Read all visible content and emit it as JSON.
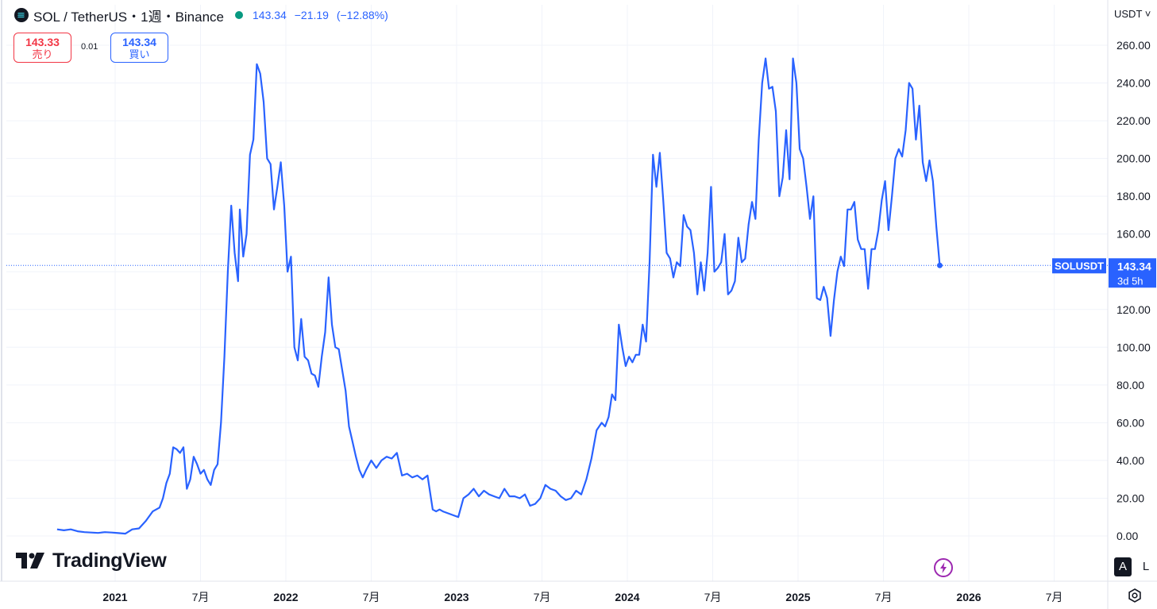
{
  "header": {
    "title": "SOL / TetherUS・1週・Binance",
    "last": "143.34",
    "change": "−21.19",
    "change_pct": "(−12.88%)",
    "color_up": "#2962ff",
    "status_color": "#089981"
  },
  "trade": {
    "sell_price": "143.33",
    "sell_label": "売り",
    "buy_price": "143.34",
    "buy_label": "買い",
    "spread": "0.01",
    "sell_color": "#f23645",
    "buy_color": "#2962ff"
  },
  "currency": {
    "label": "USDT ˅"
  },
  "logo": {
    "text": "TradingView"
  },
  "price_tag": {
    "symbol": "SOLUSDT",
    "value": "143.34",
    "countdown": "3d 5h"
  },
  "scale_buttons": {
    "auto": "A",
    "log": "L"
  },
  "chart_data": {
    "type": "line",
    "series": [
      {
        "color": "#2962ff",
        "x": [
          2020.66,
          2020.7,
          2020.74,
          2020.78,
          2020.82,
          2020.86,
          2020.9,
          2020.94,
          2020.98,
          2021.02,
          2021.06,
          2021.1,
          2021.14,
          2021.18,
          2021.22,
          2021.26,
          2021.28,
          2021.3,
          2021.32,
          2021.34,
          2021.36,
          2021.38,
          2021.4,
          2021.42,
          2021.44,
          2021.46,
          2021.48,
          2021.5,
          2021.52,
          2021.54,
          2021.56,
          2021.58,
          2021.6,
          2021.62,
          2021.64,
          2021.66,
          2021.68,
          2021.7,
          2021.72,
          2021.73,
          2021.75,
          2021.77,
          2021.79,
          2021.81,
          2021.83,
          2021.85,
          2021.87,
          2021.89,
          2021.91,
          2021.93,
          2021.95,
          2021.97,
          2021.99,
          2022.01,
          2022.03,
          2022.05,
          2022.07,
          2022.09,
          2022.11,
          2022.13,
          2022.15,
          2022.17,
          2022.19,
          2022.21,
          2022.23,
          2022.25,
          2022.27,
          2022.29,
          2022.31,
          2022.33,
          2022.35,
          2022.37,
          2022.39,
          2022.41,
          2022.43,
          2022.45,
          2022.47,
          2022.5,
          2022.53,
          2022.56,
          2022.59,
          2022.62,
          2022.65,
          2022.68,
          2022.71,
          2022.74,
          2022.77,
          2022.8,
          2022.83,
          2022.86,
          2022.88,
          2022.9,
          2022.92,
          2022.95,
          2022.98,
          2023.01,
          2023.04,
          2023.07,
          2023.1,
          2023.13,
          2023.16,
          2023.19,
          2023.22,
          2023.25,
          2023.28,
          2023.31,
          2023.34,
          2023.37,
          2023.4,
          2023.43,
          2023.46,
          2023.49,
          2023.52,
          2023.55,
          2023.58,
          2023.61,
          2023.64,
          2023.67,
          2023.7,
          2023.73,
          2023.76,
          2023.79,
          2023.82,
          2023.85,
          2023.87,
          2023.89,
          2023.91,
          2023.93,
          2023.95,
          2023.97,
          2023.99,
          2024.01,
          2024.03,
          2024.05,
          2024.07,
          2024.09,
          2024.11,
          2024.13,
          2024.15,
          2024.17,
          2024.19,
          2024.21,
          2024.23,
          2024.25,
          2024.27,
          2024.29,
          2024.31,
          2024.33,
          2024.35,
          2024.37,
          2024.39,
          2024.41,
          2024.43,
          2024.45,
          2024.47,
          2024.49,
          2024.51,
          2024.53,
          2024.55,
          2024.57,
          2024.59,
          2024.61,
          2024.63,
          2024.65,
          2024.67,
          2024.69,
          2024.71,
          2024.73,
          2024.75,
          2024.77,
          2024.79,
          2024.81,
          2024.83,
          2024.85,
          2024.87,
          2024.89,
          2024.91,
          2024.93,
          2024.95,
          2024.97,
          2024.99,
          2025.01,
          2025.03,
          2025.05,
          2025.07,
          2025.09,
          2025.11,
          2025.13,
          2025.15,
          2025.17,
          2025.19,
          2025.21,
          2025.23,
          2025.25,
          2025.27,
          2025.29,
          2025.31,
          2025.33,
          2025.35,
          2025.37,
          2025.39,
          2025.41,
          2025.43,
          2025.45,
          2025.47,
          2025.49,
          2025.51,
          2025.53,
          2025.55,
          2025.57,
          2025.59,
          2025.61,
          2025.63,
          2025.65,
          2025.67,
          2025.69,
          2025.71,
          2025.73,
          2025.75,
          2025.77,
          2025.79,
          2025.81,
          2025.83
        ],
        "y": [
          3.5,
          3.0,
          3.5,
          2.5,
          2.0,
          1.8,
          1.6,
          2.0,
          1.8,
          1.5,
          1.2,
          3.5,
          4.0,
          8.0,
          13.0,
          15.0,
          20.0,
          28.0,
          33.0,
          47.0,
          46.0,
          44.0,
          47.0,
          25.0,
          30.0,
          42.0,
          38.0,
          33.0,
          35.0,
          30.0,
          27.0,
          35.0,
          38.0,
          60.0,
          95.0,
          140.0,
          175.0,
          150.0,
          135.0,
          173.0,
          148.0,
          160.0,
          202.0,
          210.0,
          250.0,
          245.0,
          230.0,
          200.0,
          197.0,
          173.0,
          185.0,
          198.0,
          175.0,
          140.0,
          148.0,
          100.0,
          93.0,
          115.0,
          95.0,
          93.0,
          86.0,
          85.0,
          79.0,
          95.0,
          108.0,
          137.0,
          112.0,
          100.0,
          99.0,
          88.0,
          77.0,
          58.0,
          50.0,
          42.0,
          35.0,
          31.0,
          35.0,
          40.0,
          36.0,
          40.0,
          42.0,
          41.0,
          44.0,
          32.0,
          33.0,
          31.0,
          32.0,
          30.0,
          32.0,
          14.0,
          13.0,
          14.0,
          13.0,
          12.0,
          11.0,
          10.0,
          20.0,
          22.0,
          25.0,
          21.0,
          24.0,
          22.0,
          21.0,
          20.0,
          25.0,
          21.0,
          21.0,
          20.0,
          22.0,
          16.0,
          17.0,
          20.0,
          27.0,
          25.0,
          24.0,
          21.0,
          19.0,
          20.0,
          24.0,
          22.0,
          30.0,
          41.0,
          56.0,
          60.0,
          58.0,
          63.0,
          75.0,
          72.0,
          112.0,
          100.0,
          90.0,
          95.0,
          92.0,
          96.0,
          96.0,
          112.0,
          103.0,
          145.0,
          202.0,
          185.0,
          203.0,
          178.0,
          150.0,
          147.0,
          137.0,
          145.0,
          143.0,
          170.0,
          164.0,
          162.0,
          150.0,
          128.0,
          145.0,
          130.0,
          150.0,
          185.0,
          140.0,
          142.0,
          145.0,
          160.0,
          128.0,
          130.0,
          135.0,
          158.0,
          145.0,
          147.0,
          165.0,
          177.0,
          168.0,
          210.0,
          240.0,
          253.0,
          237.0,
          238.0,
          225.0,
          180.0,
          190.0,
          215.0,
          189.0,
          253.0,
          240.0,
          205.0,
          200.0,
          185.0,
          168.0,
          180.0,
          126.0,
          125.0,
          132.0,
          126.0,
          106.0,
          125.0,
          140.0,
          148.0,
          143.0,
          173.0,
          173.0,
          177.0,
          157.0,
          152.0,
          152.0,
          131.0,
          152.0,
          152.0,
          162.0,
          178.0,
          188.0,
          162.0,
          180.0,
          200.0,
          205.0,
          201.0,
          215.0,
          240.0,
          237.0,
          210.0,
          228.0,
          198.0,
          188.0,
          199.0,
          188.0,
          164.0,
          143.34
        ]
      }
    ],
    "ylim": [
      -20,
      265
    ],
    "xlim": [
      2020.58,
      2026.97
    ],
    "y_ticks": [
      "0.00",
      "20.00",
      "40.00",
      "60.00",
      "80.00",
      "100.00",
      "120.00",
      "140.00",
      "160.00",
      "180.00",
      "200.00",
      "220.00",
      "240.00",
      "260.00"
    ],
    "y_tick_values": [
      0,
      20,
      40,
      60,
      80,
      100,
      120,
      140,
      160,
      180,
      200,
      220,
      240,
      260
    ],
    "x_ticks": [
      {
        "label": "2021",
        "at": 2021.0,
        "bold": true
      },
      {
        "label": "7月",
        "at": 2021.5,
        "bold": false
      },
      {
        "label": "2022",
        "at": 2022.0,
        "bold": true
      },
      {
        "label": "7月",
        "at": 2022.5,
        "bold": false
      },
      {
        "label": "2023",
        "at": 2023.0,
        "bold": true
      },
      {
        "label": "7月",
        "at": 2023.5,
        "bold": false
      },
      {
        "label": "2024",
        "at": 2024.0,
        "bold": true
      },
      {
        "label": "7月",
        "at": 2024.5,
        "bold": false
      },
      {
        "label": "2025",
        "at": 2025.0,
        "bold": true
      },
      {
        "label": "7月",
        "at": 2025.5,
        "bold": false
      },
      {
        "label": "2026",
        "at": 2026.0,
        "bold": true
      },
      {
        "label": "7月",
        "at": 2026.5,
        "bold": false
      }
    ],
    "last_price": 143.34,
    "grid": true
  }
}
